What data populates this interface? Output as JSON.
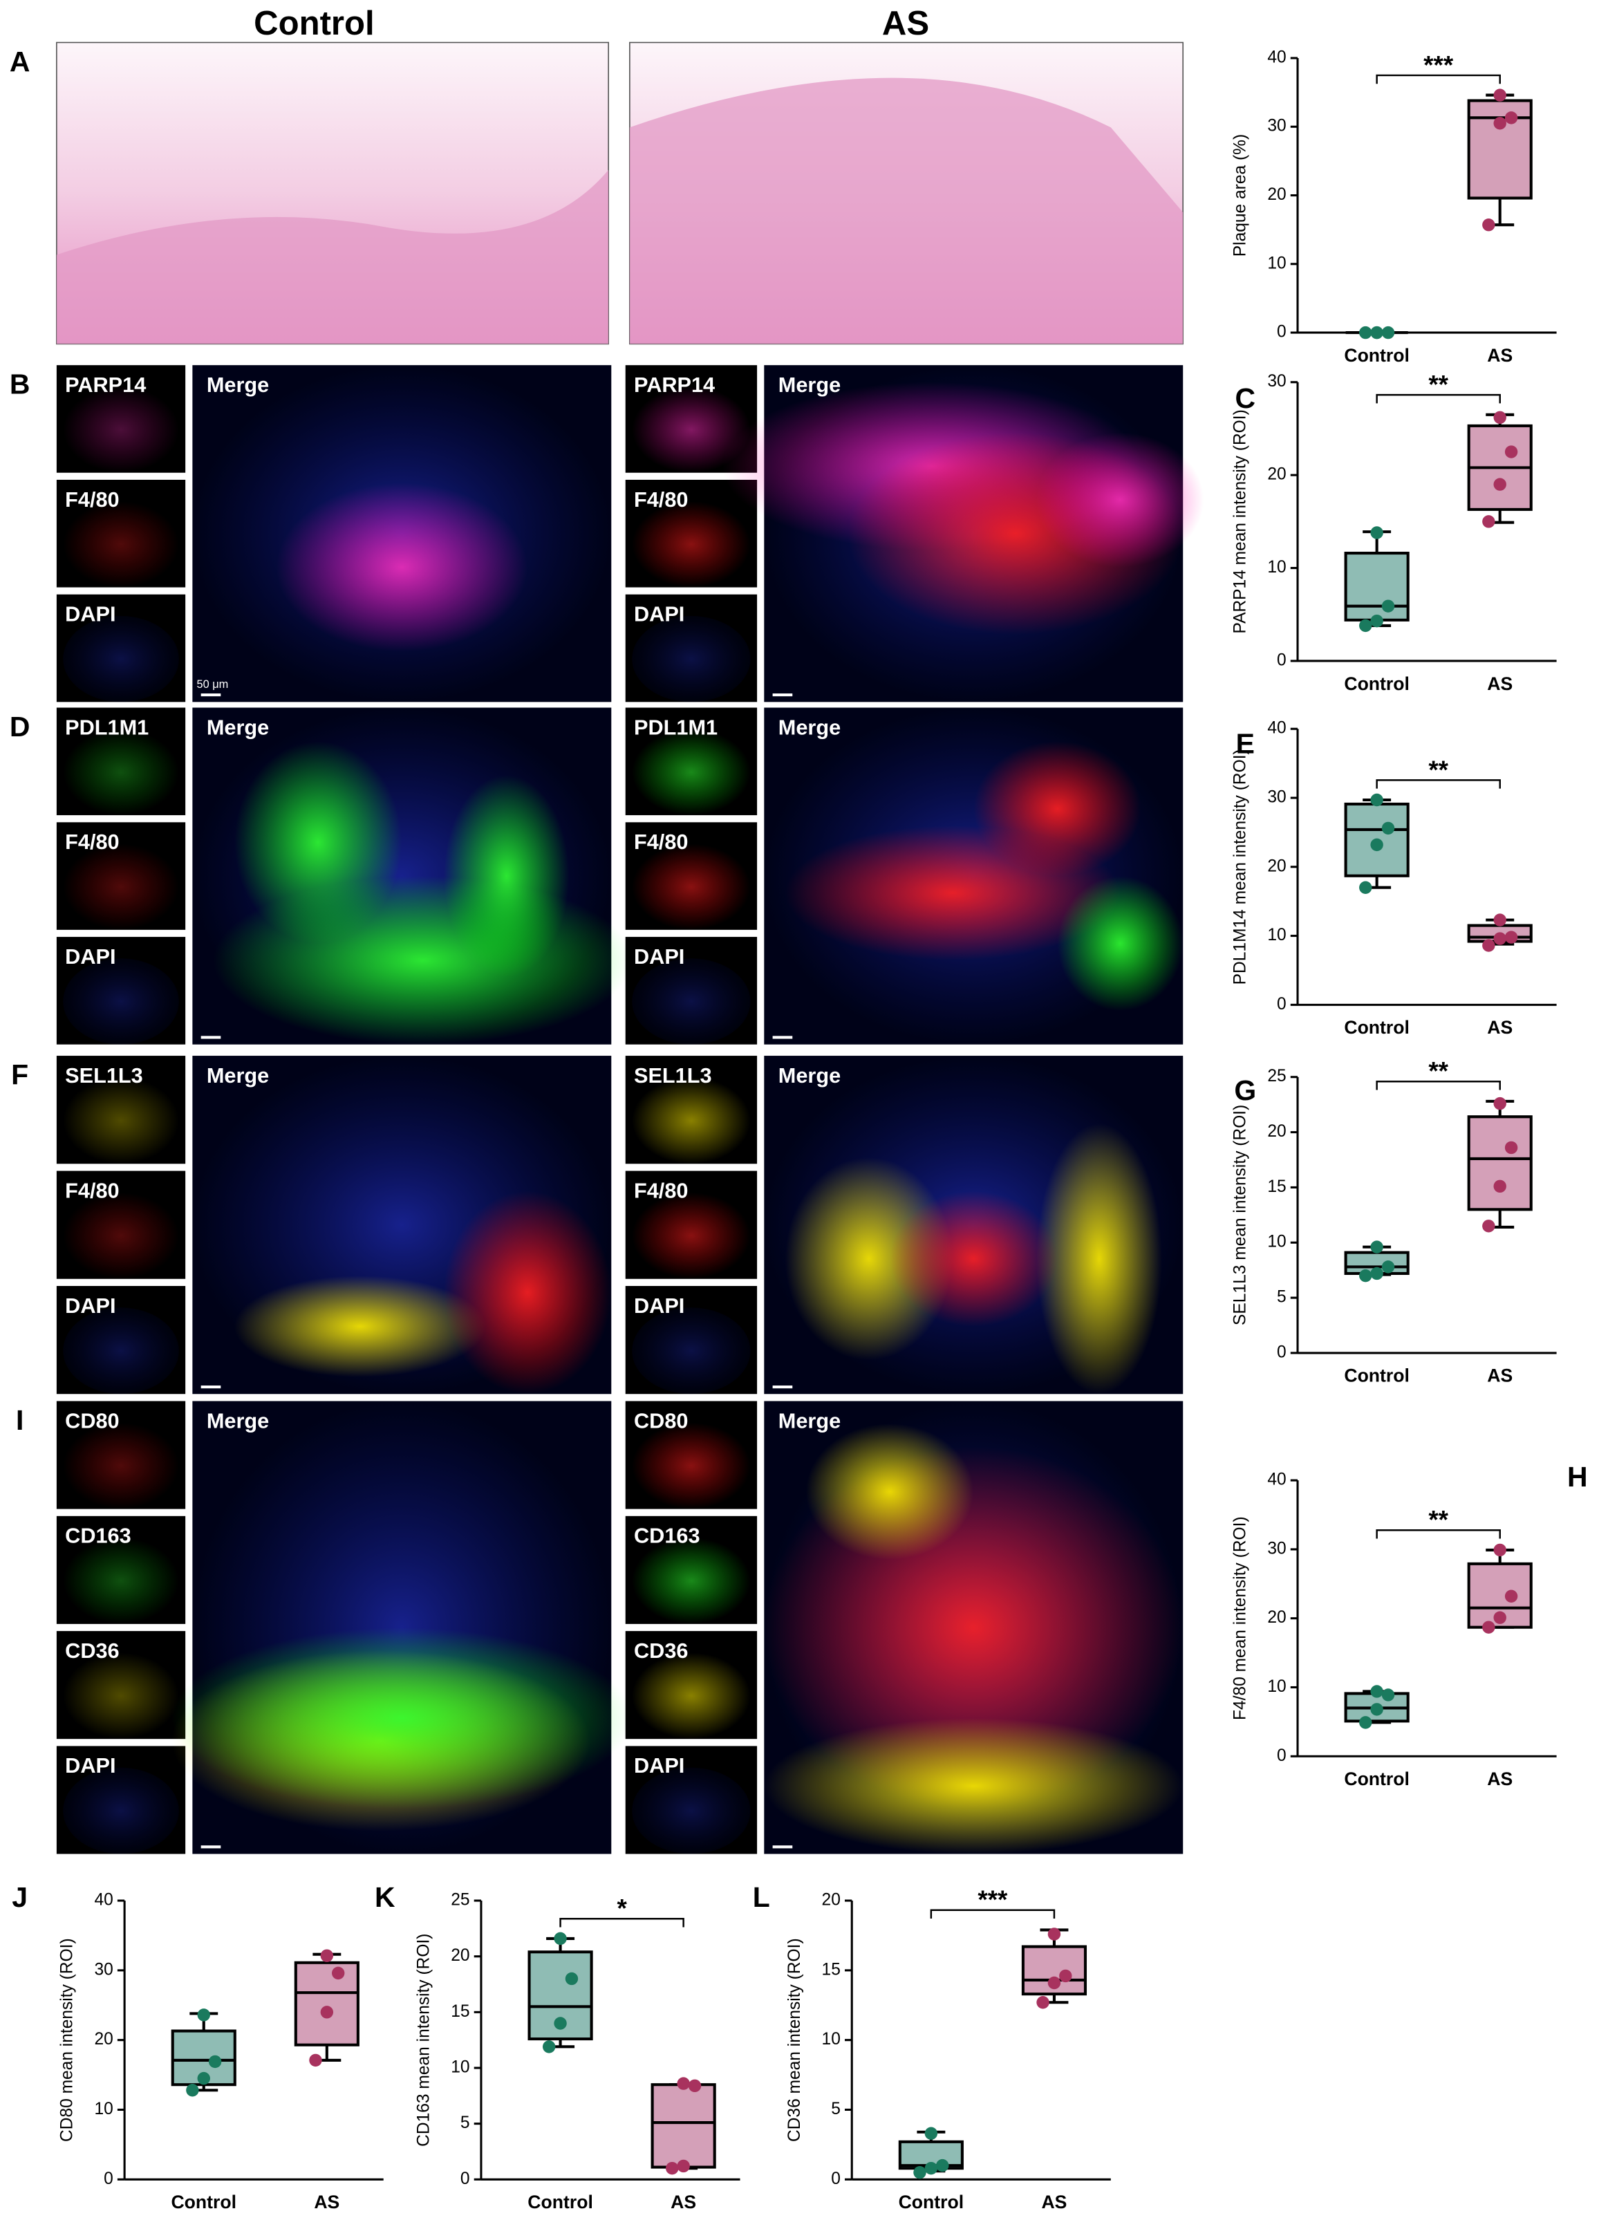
{
  "figure": {
    "headers": [
      "Control",
      "AS"
    ],
    "rows": [
      {
        "letter": "A"
      },
      {
        "letter": "B",
        "channels": [
          "PARP14",
          "F4/80",
          "DAPI"
        ],
        "merge": "Merge"
      },
      {
        "letter": "D",
        "channels": [
          "PDL1M1",
          "F4/80",
          "DAPI"
        ],
        "merge": "Merge"
      },
      {
        "letter": "F",
        "channels": [
          "SEL1L3",
          "F4/80",
          "DAPI"
        ],
        "merge": "Merge"
      },
      {
        "letter": "I",
        "channels": [
          "CD80",
          "CD163",
          "CD36",
          "DAPI"
        ],
        "merge": "Merge"
      }
    ],
    "scale_bar": "50 μm"
  },
  "chart_data": [
    {
      "type": "box",
      "y_label": "Plaque area (%)",
      "categories": [
        "Control",
        "AS"
      ],
      "ylim": [
        0,
        40
      ],
      "yticks": [
        0,
        10,
        20,
        30,
        40
      ],
      "significance": "***",
      "boxes": [
        {
          "color": "#8fbcb4",
          "point_color": "#1a7a5e",
          "min": 0,
          "q1": 0,
          "median": 0,
          "q3": 0,
          "max": 0,
          "points": [
            0,
            0,
            0,
            0
          ]
        },
        {
          "color": "#d4a0b8",
          "point_color": "#a8325e",
          "min": 15.7,
          "q1": 19.6,
          "median": 31.3,
          "q3": 33.8,
          "max": 34.6,
          "points": [
            15.7,
            30.5,
            31.3,
            34.6
          ]
        }
      ]
    },
    {
      "type": "box",
      "panel_label": "C",
      "y_label": "PARP14 mean intensity (ROI)",
      "categories": [
        "Control",
        "AS"
      ],
      "ylim": [
        0,
        30
      ],
      "yticks": [
        0,
        10,
        20,
        30
      ],
      "significance": "**",
      "boxes": [
        {
          "color": "#8fbcb4",
          "point_color": "#1a7a5e",
          "min": 3.8,
          "q1": 4.4,
          "median": 5.9,
          "q3": 11.6,
          "max": 13.9,
          "points": [
            3.8,
            4.3,
            5.9,
            13.8
          ]
        },
        {
          "color": "#d4a0b8",
          "point_color": "#a8325e",
          "min": 14.9,
          "q1": 16.3,
          "median": 20.8,
          "q3": 25.3,
          "max": 26.5,
          "points": [
            15.0,
            19.0,
            22.5,
            26.2
          ]
        }
      ]
    },
    {
      "type": "box",
      "panel_label": "E",
      "y_label": "PDL1M14 mean intensity (ROI)",
      "categories": [
        "Control",
        "AS"
      ],
      "ylim": [
        0,
        40
      ],
      "yticks": [
        0,
        10,
        20,
        30,
        40
      ],
      "significance": "**",
      "boxes": [
        {
          "color": "#8fbcb4",
          "point_color": "#1a7a5e",
          "min": 17.0,
          "q1": 18.7,
          "median": 25.4,
          "q3": 29.1,
          "max": 29.7,
          "points": [
            17.0,
            23.2,
            25.6,
            29.7
          ]
        },
        {
          "color": "#d4a0b8",
          "point_color": "#a8325e",
          "min": 8.8,
          "q1": 9.2,
          "median": 9.8,
          "q3": 11.5,
          "max": 12.3,
          "points": [
            8.6,
            9.6,
            9.8,
            12.3
          ]
        }
      ]
    },
    {
      "type": "box",
      "panel_label": "G",
      "y_label": "SEL1L3 mean intensity (ROI)",
      "categories": [
        "Control",
        "AS"
      ],
      "ylim": [
        0,
        25
      ],
      "yticks": [
        0,
        5,
        10,
        15,
        20,
        25
      ],
      "significance": "**",
      "boxes": [
        {
          "color": "#8fbcb4",
          "point_color": "#1a7a5e",
          "min": 7.1,
          "q1": 7.2,
          "median": 7.8,
          "q3": 9.1,
          "max": 9.6,
          "points": [
            7.0,
            7.2,
            7.8,
            9.6
          ]
        },
        {
          "color": "#d4a0b8",
          "point_color": "#a8325e",
          "min": 11.4,
          "q1": 13.0,
          "median": 17.6,
          "q3": 21.4,
          "max": 22.8,
          "points": [
            11.5,
            15.1,
            18.6,
            22.6
          ]
        }
      ]
    },
    {
      "type": "box",
      "panel_label": "H",
      "y_label": "F4/80 mean intensity (ROI)",
      "categories": [
        "Control",
        "AS"
      ],
      "ylim": [
        0,
        40
      ],
      "yticks": [
        0,
        10,
        20,
        30,
        40
      ],
      "significance": "**",
      "boxes": [
        {
          "color": "#8fbcb4",
          "point_color": "#1a7a5e",
          "min": 4.9,
          "q1": 5.1,
          "median": 7.0,
          "q3": 9.1,
          "max": 9.4,
          "points": [
            4.9,
            6.8,
            8.9,
            9.4
          ]
        },
        {
          "color": "#d4a0b8",
          "point_color": "#a8325e",
          "min": 18.7,
          "q1": 18.7,
          "median": 21.5,
          "q3": 27.9,
          "max": 29.9,
          "points": [
            18.7,
            20.1,
            23.2,
            29.9
          ]
        }
      ]
    },
    {
      "type": "box",
      "panel_label": "J",
      "y_label": "CD80 mean intensity (ROI)",
      "categories": [
        "Control",
        "AS"
      ],
      "ylim": [
        0,
        40
      ],
      "yticks": [
        0,
        10,
        20,
        30,
        40
      ],
      "boxes": [
        {
          "color": "#8fbcb4",
          "point_color": "#1a7a5e",
          "min": 12.8,
          "q1": 13.6,
          "median": 17.1,
          "q3": 21.3,
          "max": 23.8,
          "points": [
            12.8,
            14.5,
            16.9,
            23.6
          ]
        },
        {
          "color": "#d4a0b8",
          "point_color": "#a8325e",
          "min": 17.1,
          "q1": 19.3,
          "median": 26.8,
          "q3": 31.1,
          "max": 32.3,
          "points": [
            17.1,
            24.0,
            29.6,
            32.1
          ]
        }
      ]
    },
    {
      "type": "box",
      "panel_label": "K",
      "y_label": "CD163 mean intensity (ROI)",
      "categories": [
        "Control",
        "AS"
      ],
      "ylim": [
        0,
        25
      ],
      "yticks": [
        0,
        5,
        10,
        15,
        20,
        25
      ],
      "significance": "*",
      "boxes": [
        {
          "color": "#8fbcb4",
          "point_color": "#1a7a5e",
          "min": 11.9,
          "q1": 12.6,
          "median": 15.5,
          "q3": 20.4,
          "max": 21.6,
          "points": [
            11.9,
            14.0,
            18.0,
            21.6
          ]
        },
        {
          "color": "#d4a0b8",
          "point_color": "#a8325e",
          "min": 1.0,
          "q1": 1.1,
          "median": 5.1,
          "q3": 8.5,
          "max": 8.5,
          "points": [
            1.0,
            1.2,
            8.4,
            8.6
          ]
        }
      ]
    },
    {
      "type": "box",
      "panel_label": "L",
      "y_label": "CD36 mean intensity (ROI)",
      "categories": [
        "Control",
        "AS"
      ],
      "ylim": [
        0,
        20
      ],
      "yticks": [
        0,
        5,
        10,
        15,
        20
      ],
      "significance": "***",
      "boxes": [
        {
          "color": "#8fbcb4",
          "point_color": "#1a7a5e",
          "min": 0.6,
          "q1": 0.8,
          "median": 1.0,
          "q3": 2.7,
          "max": 3.4,
          "points": [
            0.5,
            0.8,
            1.0,
            3.3
          ]
        },
        {
          "color": "#d4a0b8",
          "point_color": "#a8325e",
          "min": 12.7,
          "q1": 13.3,
          "median": 14.3,
          "q3": 16.7,
          "max": 17.9,
          "points": [
            12.7,
            14.1,
            14.6,
            17.6
          ]
        }
      ]
    }
  ]
}
